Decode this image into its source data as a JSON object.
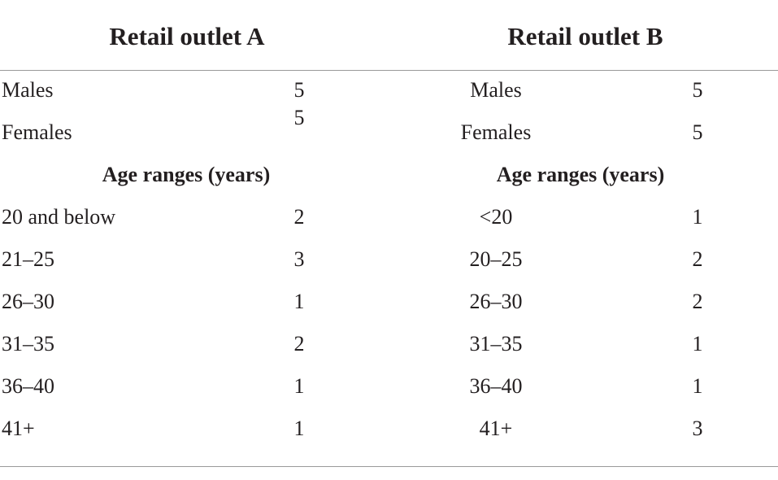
{
  "header": {
    "outlet_a": "Retail outlet A",
    "outlet_b": "Retail outlet B"
  },
  "gender_rows": [
    {
      "a_label": "Males",
      "a_value": 5,
      "b_label": "Males",
      "b_value": 5
    },
    {
      "a_label": "Females",
      "a_value": 5,
      "b_label": "Females",
      "b_value": 5
    }
  ],
  "age_section": {
    "a_title": "Age ranges (years)",
    "b_title": "Age ranges (years)",
    "rows": [
      {
        "a_label": "20 and below",
        "a_value": 2,
        "b_label": "<20",
        "b_value": 1
      },
      {
        "a_label": "21–25",
        "a_value": 3,
        "b_label": "20–25",
        "b_value": 2
      },
      {
        "a_label": "26–30",
        "a_value": 1,
        "b_label": "26–30",
        "b_value": 2
      },
      {
        "a_label": "31–35",
        "a_value": 2,
        "b_label": "31–35",
        "b_value": 1
      },
      {
        "a_label": "36–40",
        "a_value": 1,
        "b_label": "36–40",
        "b_value": 1
      },
      {
        "a_label": "41+",
        "a_value": 1,
        "b_label": "41+",
        "b_value": 3
      }
    ]
  }
}
